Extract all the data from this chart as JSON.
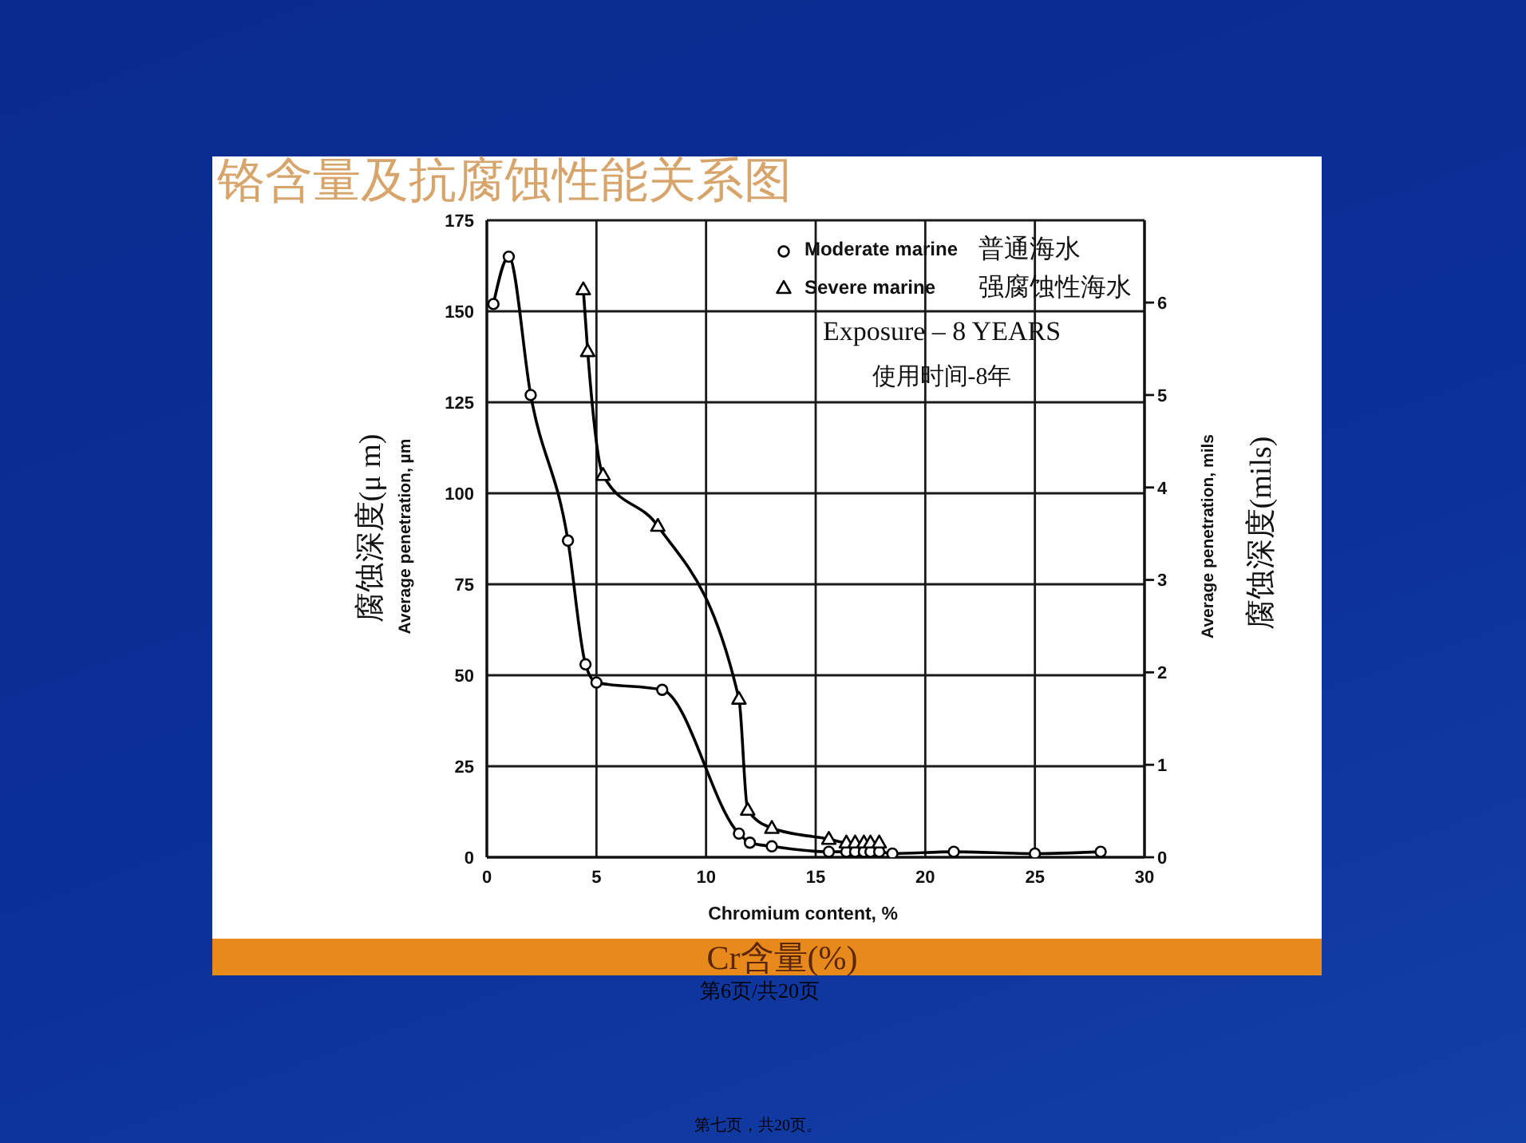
{
  "chart_data": {
    "type": "line",
    "title": "铬含量及抗腐蚀性能关系图",
    "xlabel": "Chromium content, %",
    "ylabel": "Average penetration, µm",
    "y2label": "Average penetration, mils",
    "annotations": [
      "普通海水",
      "强腐蚀性海水",
      "Exposure – 8 YEARS",
      "使用时间-8年",
      "腐蚀深度(μ m)",
      "腐蚀深度(mils)",
      "Cr含量(%)",
      "第6页/共20页",
      "第七页，共20页。"
    ],
    "series": [
      {
        "name": "Moderate marine",
        "color": "#000000",
        "marker": "circle",
        "x": [
          0.3,
          1,
          2,
          3.7,
          4.5,
          5,
          8,
          11.5,
          12,
          13,
          15.6,
          16.4,
          16.8,
          17.2,
          17.5,
          17.9,
          18.5,
          21.3,
          25,
          28
        ],
        "values": [
          152,
          165,
          127,
          87,
          53,
          48,
          46,
          6.5,
          4,
          3,
          1.5,
          1.5,
          1.5,
          1.5,
          1.5,
          1.5,
          1,
          1.5,
          1,
          1.5
        ]
      },
      {
        "name": "Severe marine",
        "color": "#000000",
        "marker": "triangle",
        "x": [
          4.4,
          4.6,
          5.3,
          7.8,
          11.5,
          11.9,
          13,
          15.6,
          16.4,
          16.8,
          17.2,
          17.5,
          17.9
        ],
        "values": [
          156,
          139,
          105,
          91,
          43.5,
          13,
          8,
          5,
          4,
          4,
          4,
          4,
          4
        ]
      }
    ],
    "xlim": [
      0,
      30
    ],
    "xticks": [
      0,
      5,
      10,
      15,
      20,
      25,
      30
    ],
    "ylim": [
      0,
      175
    ],
    "yticks": [
      0,
      25,
      50,
      75,
      100,
      125,
      150,
      175
    ],
    "y2lim": [
      0,
      6.89
    ],
    "y2ticks": [
      0,
      1,
      2,
      3,
      4,
      5,
      6
    ],
    "grid": true,
    "legend": "top right"
  }
}
